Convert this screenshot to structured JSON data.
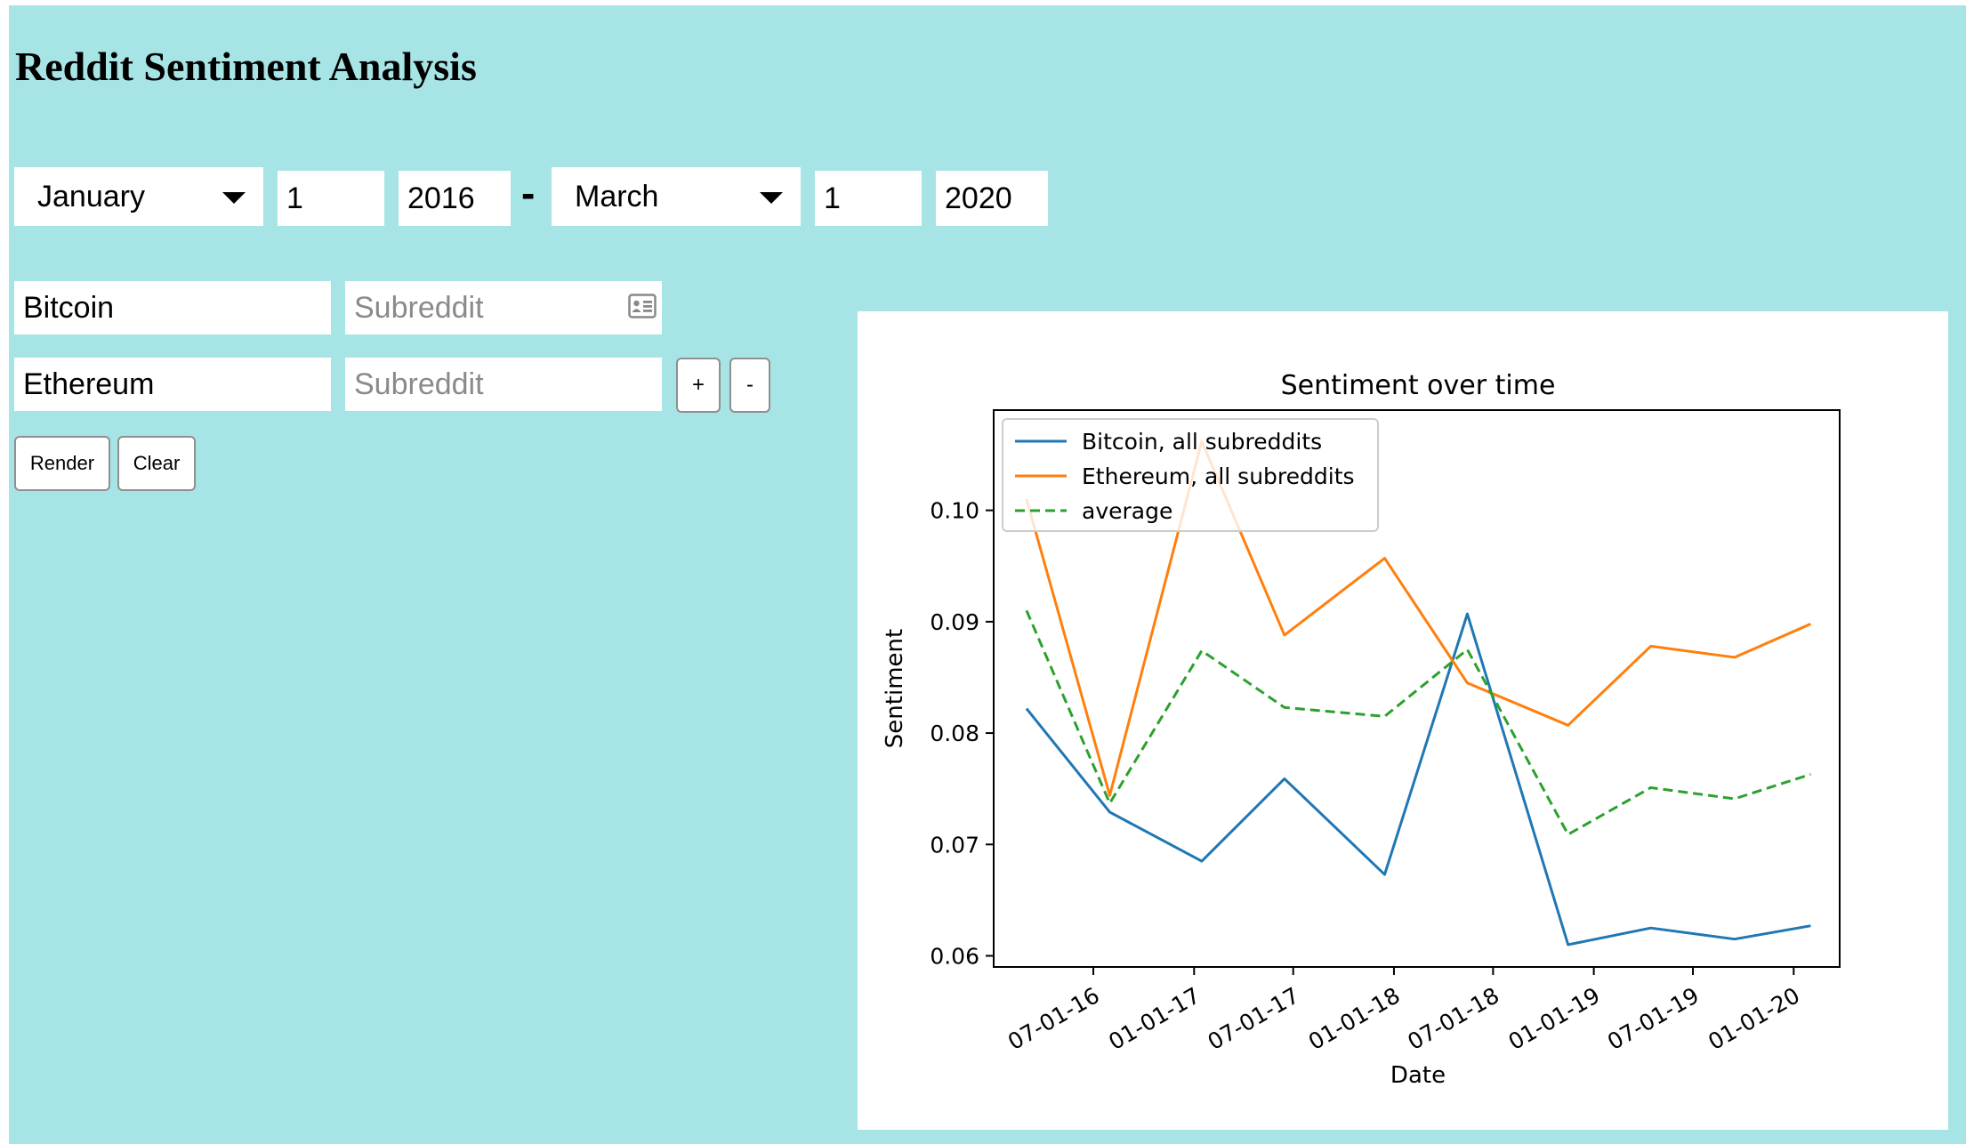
{
  "header": {
    "title": "Reddit Sentiment Analysis"
  },
  "date_range": {
    "start": {
      "month": "January",
      "day": "1",
      "year": "2016"
    },
    "separator": "-",
    "end": {
      "month": "March",
      "day": "1",
      "year": "2020"
    }
  },
  "queries": [
    {
      "term": "Bitcoin",
      "subreddit_placeholder": "Subreddit"
    },
    {
      "term": "Ethereum",
      "subreddit_placeholder": "Subreddit"
    }
  ],
  "buttons": {
    "add": "+",
    "remove": "-",
    "render": "Render",
    "clear": "Clear"
  },
  "icons": {
    "month_dropdown": "caret-down-icon",
    "subreddit_autofill": "contact-card-icon"
  },
  "chart_data": {
    "type": "line",
    "title": "Sentiment over time",
    "xlabel": "Date",
    "ylabel": "Sentiment",
    "x_tick_labels": [
      "07-01-16",
      "01-01-17",
      "07-01-17",
      "01-01-18",
      "07-01-18",
      "01-01-19",
      "07-01-19",
      "01-01-20"
    ],
    "x": [
      "2016-03-01",
      "2016-07-31",
      "2017-01-15",
      "2017-06-15",
      "2017-12-15",
      "2018-05-15",
      "2018-11-15",
      "2019-04-15",
      "2019-09-15",
      "2020-02-01"
    ],
    "xlim": [
      "2016-01-01",
      "2020-03-25"
    ],
    "ylim": [
      0.059,
      0.109
    ],
    "y_ticks": [
      "0.06",
      "0.07",
      "0.08",
      "0.09",
      "0.10"
    ],
    "legend_position": "top-left",
    "grid": false,
    "series": [
      {
        "name": "Bitcoin, all subreddits",
        "color": "#1f77b4",
        "style": "solid",
        "values": [
          0.0822,
          0.0729,
          0.0685,
          0.0759,
          0.0673,
          0.0907,
          0.061,
          0.0625,
          0.0615,
          0.0627
        ]
      },
      {
        "name": "Ethereum, all subreddits",
        "color": "#ff7f0e",
        "style": "solid",
        "values": [
          0.101,
          0.0744,
          0.1062,
          0.0888,
          0.0957,
          0.0845,
          0.0807,
          0.0878,
          0.0868,
          0.0898
        ]
      },
      {
        "name": "average",
        "color": "#2ca02c",
        "style": "dashed",
        "values": [
          0.091,
          0.0737,
          0.0874,
          0.0823,
          0.0815,
          0.0875,
          0.0709,
          0.0751,
          0.0741,
          0.0763
        ]
      }
    ]
  }
}
